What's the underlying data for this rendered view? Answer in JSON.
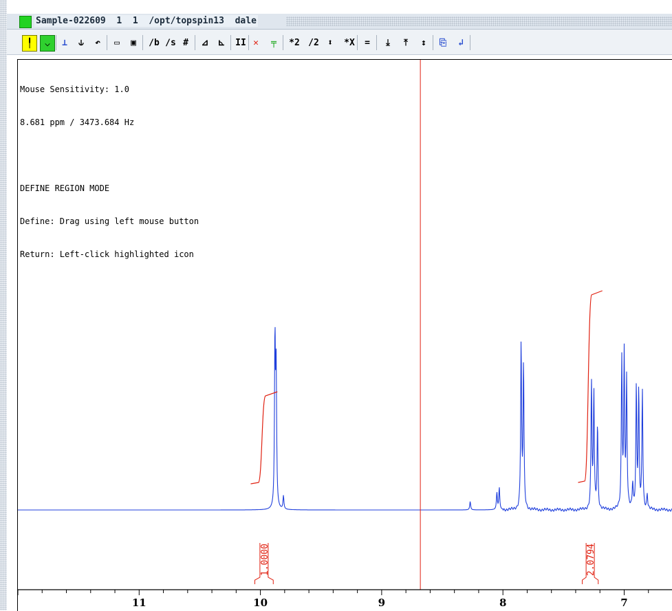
{
  "window": {
    "title": "Sample-022609  1  1  /opt/topspin13  dale",
    "status_color": "#22d322"
  },
  "toolbar": {
    "buttons": [
      {
        "name": "define-region-button",
        "label": "╿",
        "style": "yellow"
      },
      {
        "name": "mode-button-2",
        "label": "⌵",
        "style": "green"
      },
      {
        "name": "integrate-d-button",
        "label": "⊥",
        "style": "plain"
      },
      {
        "name": "step-button",
        "label": "⫝",
        "style": "plain"
      },
      {
        "name": "undo-button",
        "label": "↶",
        "style": "plain"
      },
      {
        "name": "open-button",
        "label": "▭",
        "style": "plain"
      },
      {
        "name": "save-button",
        "label": "▣",
        "style": "plain"
      },
      {
        "name": "slope-b-button",
        "label": "∕b",
        "style": "plain"
      },
      {
        "name": "slope-s-button",
        "label": "∕s",
        "style": "plain"
      },
      {
        "name": "hash-button",
        "label": "#",
        "style": "plain"
      },
      {
        "name": "triangle-up-button",
        "label": "⊿",
        "style": "plain"
      },
      {
        "name": "triangle-down-button",
        "label": "⊾",
        "style": "plain"
      },
      {
        "name": "pause-button",
        "label": "II",
        "style": "plain"
      },
      {
        "name": "delete-button",
        "label": "✕",
        "style": "plain"
      },
      {
        "name": "green-edit-button",
        "label": "╤",
        "style": "plain"
      },
      {
        "name": "multiply-2-button",
        "label": "*2",
        "style": "plain"
      },
      {
        "name": "divide-2-button",
        "label": "/2",
        "style": "plain"
      },
      {
        "name": "up-down-button",
        "label": "⬍",
        "style": "plain"
      },
      {
        "name": "multiply-x-button",
        "label": "*X",
        "style": "plain"
      },
      {
        "name": "equals-button",
        "label": "=",
        "style": "plain"
      },
      {
        "name": "down-arrow-button",
        "label": "⤓",
        "style": "plain"
      },
      {
        "name": "up-arrow-button",
        "label": "⤒",
        "style": "plain"
      },
      {
        "name": "expand-button",
        "label": "↕",
        "style": "plain"
      },
      {
        "name": "save-return-button",
        "label": "⎘",
        "style": "plain"
      },
      {
        "name": "return-button",
        "label": "↲",
        "style": "plain"
      }
    ]
  },
  "info": {
    "line1": "Mouse Sensitivity: 1.0",
    "line2": "8.681 ppm / 3473.684 Hz",
    "line3": "",
    "line4": "DEFINE REGION MODE",
    "line5": "Define: Drag using left mouse button",
    "line6": "Return: Left-click highlighted icon"
  },
  "colors": {
    "spectrum": "#1f3fdc",
    "integral": "#e02010",
    "cursor": "#e02010",
    "axis": "#000000"
  },
  "chart_data": {
    "type": "line",
    "xlabel": "",
    "ylabel": "",
    "x_ticks": [
      "11",
      "10",
      "9",
      "8",
      "7"
    ],
    "xlim": [
      12.0,
      6.6
    ],
    "cursor_ppm": 8.681,
    "integrals": [
      {
        "label": "1.0000",
        "from_ppm": 10.08,
        "to_ppm": 9.86
      },
      {
        "label": "2.0794",
        "from_ppm": 7.38,
        "to_ppm": 7.18
      }
    ],
    "peaks": [
      {
        "ppm": 9.88,
        "height": 1.0
      },
      {
        "ppm": 9.87,
        "height": 0.78
      },
      {
        "ppm": 9.81,
        "height": 0.08
      },
      {
        "ppm": 8.27,
        "height": 0.05
      },
      {
        "ppm": 8.05,
        "height": 0.1
      },
      {
        "ppm": 8.03,
        "height": 0.13
      },
      {
        "ppm": 7.85,
        "height": 0.98
      },
      {
        "ppm": 7.83,
        "height": 0.85
      },
      {
        "ppm": 7.27,
        "height": 0.75
      },
      {
        "ppm": 7.25,
        "height": 0.68
      },
      {
        "ppm": 7.22,
        "height": 0.5
      },
      {
        "ppm": 7.02,
        "height": 0.88
      },
      {
        "ppm": 7.0,
        "height": 0.9
      },
      {
        "ppm": 6.98,
        "height": 0.75
      },
      {
        "ppm": 6.93,
        "height": 0.15
      },
      {
        "ppm": 6.9,
        "height": 0.71
      },
      {
        "ppm": 6.88,
        "height": 0.68
      },
      {
        "ppm": 6.85,
        "height": 0.7
      },
      {
        "ppm": 6.81,
        "height": 0.09
      }
    ]
  }
}
